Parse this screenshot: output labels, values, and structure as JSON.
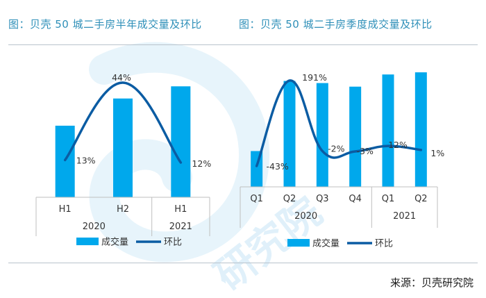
{
  "titles": {
    "left": "图：贝壳 50 城二手房半年成交量及环比",
    "right": "图：贝壳 50 城二手房季度成交量及环比"
  },
  "source": "来源：贝壳研究院",
  "watermark": "研究院",
  "colors": {
    "bar": "#00a8ec",
    "line": "#0b5ca3",
    "title": "#2e8fb8",
    "axis": "#bfbfbf",
    "watermark": "#d3ebf8"
  },
  "chart_data": [
    {
      "type": "bar",
      "categories": [
        "H1",
        "H2",
        "H1"
      ],
      "groups": [
        {
          "label": "2020",
          "start": 0,
          "end": 1
        },
        {
          "label": "2021",
          "start": 2,
          "end": 2
        }
      ],
      "series": [
        {
          "name": "成交量",
          "type": "bar",
          "values": [
            100,
            138,
            155
          ]
        },
        {
          "name": "环比",
          "type": "line",
          "values": [
            13,
            44,
            12
          ],
          "labels": [
            "13%",
            "44%",
            "12%"
          ]
        }
      ],
      "legend": [
        "成交量",
        "环比"
      ],
      "legend_position": "bottom"
    },
    {
      "type": "bar",
      "categories": [
        "Q1",
        "Q2",
        "Q3",
        "Q4",
        "Q1",
        "Q2"
      ],
      "groups": [
        {
          "label": "2020",
          "start": 0,
          "end": 3
        },
        {
          "label": "2021",
          "start": 4,
          "end": 5
        }
      ],
      "series": [
        {
          "name": "成交量",
          "type": "bar",
          "values": [
            50,
            148,
            145,
            140,
            157,
            160
          ]
        },
        {
          "name": "环比",
          "type": "line",
          "values": [
            -43,
            191,
            -2,
            -3,
            12,
            1
          ],
          "labels": [
            "-43%",
            "191%",
            "-2%",
            "-3%",
            "12%",
            "1%"
          ]
        }
      ],
      "legend": [
        "成交量",
        "环比"
      ],
      "legend_position": "bottom"
    }
  ]
}
